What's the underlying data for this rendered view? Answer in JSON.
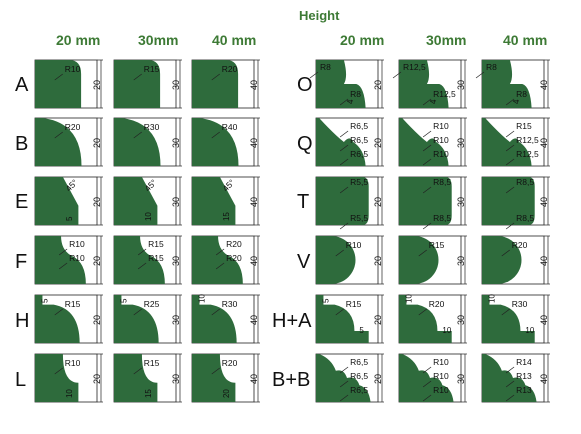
{
  "header": {
    "title": "Height",
    "left_columns": [
      "20 mm",
      "30mm",
      "40 mm"
    ],
    "right_columns": [
      "20 mm",
      "30mm",
      "40 mm"
    ]
  },
  "rows_left": [
    {
      "label": "A",
      "cells": [
        {
          "radii": [
            "R10"
          ],
          "height": "20"
        },
        {
          "radii": [
            "R15"
          ],
          "height": "30"
        },
        {
          "radii": [
            "R20"
          ],
          "height": "40"
        }
      ]
    },
    {
      "label": "B",
      "cells": [
        {
          "radii": [
            "R20"
          ],
          "height": "20"
        },
        {
          "radii": [
            "R30"
          ],
          "height": "30"
        },
        {
          "radii": [
            "R40"
          ],
          "height": "40"
        }
      ]
    },
    {
      "label": "E",
      "cells": [
        {
          "angle": "45°",
          "step": "5",
          "height": "20"
        },
        {
          "angle": "45°",
          "step": "10",
          "height": "30"
        },
        {
          "angle": "45°",
          "step": "15",
          "height": "40"
        }
      ]
    },
    {
      "label": "F",
      "cells": [
        {
          "radii": [
            "R10",
            "R10"
          ],
          "height": "20"
        },
        {
          "radii": [
            "R15",
            "R15"
          ],
          "height": "30"
        },
        {
          "radii": [
            "R20",
            "R20"
          ],
          "height": "40"
        }
      ]
    },
    {
      "label": "H",
      "cells": [
        {
          "radii": [
            "R15"
          ],
          "step": "5",
          "height": "20"
        },
        {
          "radii": [
            "R25"
          ],
          "step": "5",
          "height": "30"
        },
        {
          "radii": [
            "R30"
          ],
          "step": "10",
          "height": "40"
        }
      ]
    },
    {
      "label": "L",
      "cells": [
        {
          "radii": [
            "R10"
          ],
          "step": "10",
          "height": "20"
        },
        {
          "radii": [
            "R15"
          ],
          "step": "15",
          "height": "30"
        },
        {
          "radii": [
            "R20"
          ],
          "step": "20",
          "height": "40"
        }
      ]
    }
  ],
  "rows_right": [
    {
      "label": "O",
      "cells": [
        {
          "radii": [
            "R8",
            "R8"
          ],
          "step": "4",
          "height": "20"
        },
        {
          "radii": [
            "R12,5",
            "R12,5"
          ],
          "step": "4",
          "height": "30"
        },
        {
          "radii": [
            "R8",
            "R8"
          ],
          "step": "4",
          "height": "40"
        }
      ]
    },
    {
      "label": "Q",
      "cells": [
        {
          "radii": [
            "R6,5",
            "R6,5",
            "R6,5"
          ],
          "height": "20"
        },
        {
          "radii": [
            "R10",
            "R10",
            "R10"
          ],
          "height": "30"
        },
        {
          "radii": [
            "R15",
            "R12,5",
            "R12,5"
          ],
          "height": "40"
        }
      ]
    },
    {
      "label": "T",
      "cells": [
        {
          "radii": [
            "R5,5",
            "R5,5"
          ],
          "height": "20"
        },
        {
          "radii": [
            "R8,5",
            "R8,5"
          ],
          "height": "30"
        },
        {
          "radii": [
            "R8,5",
            "R8,5"
          ],
          "height": "40"
        }
      ]
    },
    {
      "label": "V",
      "cells": [
        {
          "radii": [
            "R10"
          ],
          "height": "20"
        },
        {
          "radii": [
            "R15"
          ],
          "height": "30"
        },
        {
          "radii": [
            "R20"
          ],
          "height": "40"
        }
      ]
    },
    {
      "label": "H+A",
      "cells": [
        {
          "radii": [
            "R15"
          ],
          "step": "5",
          "step2": "5",
          "height": "20"
        },
        {
          "radii": [
            "R20"
          ],
          "step": "10",
          "step2": "10",
          "height": "30"
        },
        {
          "radii": [
            "R30"
          ],
          "step": "10",
          "step2": "10",
          "height": "40"
        }
      ]
    },
    {
      "label": "B+B",
      "cells": [
        {
          "radii": [
            "R6,5",
            "R6,5",
            "R6,5"
          ],
          "height": "20"
        },
        {
          "radii": [
            "R10",
            "R10",
            "R10"
          ],
          "height": "30"
        },
        {
          "radii": [
            "R14",
            "R13",
            "R13"
          ],
          "height": "40"
        }
      ]
    }
  ]
}
